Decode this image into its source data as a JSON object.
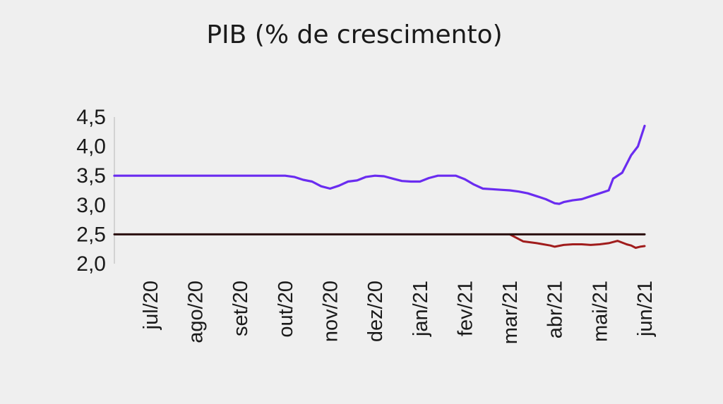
{
  "chart_data": {
    "type": "line",
    "title": "PIB (% de crescimento)",
    "xlabel": "",
    "ylabel": "",
    "ylim": [
      2.0,
      4.5
    ],
    "y_ticks": [
      "4,5",
      "4,0",
      "3,5",
      "3,0",
      "2,5",
      "2,0"
    ],
    "y_tick_values": [
      4.5,
      4.0,
      3.5,
      3.0,
      2.5,
      2.0
    ],
    "categories": [
      "jul/20",
      "ago/20",
      "set/20",
      "out/20",
      "nov/20",
      "dez/20",
      "jan/21",
      "fev/21",
      "mar/21",
      "abr/21",
      "mai/21",
      "jun/21"
    ],
    "x_range": [
      -0.8,
      11.0
    ],
    "grid": false,
    "legend": "none",
    "colors": {
      "blue_series": "#6a2cf0",
      "red_series": "#a01c1c",
      "reference_line": "#2a0f0f",
      "axis": "#c8c8c8"
    },
    "series": [
      {
        "color": "#6a2cf0",
        "x": [
          -0.8,
          0,
          1,
          2,
          3,
          3.2,
          3.4,
          3.6,
          3.8,
          4.0,
          4.2,
          4.4,
          4.6,
          4.8,
          5.0,
          5.2,
          5.4,
          5.6,
          5.8,
          6.0,
          6.2,
          6.4,
          6.6,
          6.8,
          7.0,
          7.2,
          7.4,
          7.6,
          7.8,
          8.0,
          8.2,
          8.4,
          8.6,
          8.8,
          9.0,
          9.1,
          9.2,
          9.4,
          9.6,
          9.8,
          10.0,
          10.2,
          10.3,
          10.5,
          10.7,
          10.85,
          11.0
        ],
        "values": [
          3.5,
          3.5,
          3.5,
          3.5,
          3.5,
          3.48,
          3.43,
          3.4,
          3.32,
          3.28,
          3.33,
          3.4,
          3.42,
          3.48,
          3.5,
          3.49,
          3.45,
          3.41,
          3.4,
          3.4,
          3.46,
          3.5,
          3.5,
          3.5,
          3.44,
          3.35,
          3.28,
          3.27,
          3.26,
          3.25,
          3.23,
          3.2,
          3.15,
          3.1,
          3.03,
          3.02,
          3.05,
          3.08,
          3.1,
          3.15,
          3.2,
          3.25,
          3.45,
          3.55,
          3.85,
          4.0,
          4.35
        ]
      },
      {
        "color": "#a01c1c",
        "x": [
          8.0,
          8.3,
          8.6,
          8.9,
          9.0,
          9.2,
          9.4,
          9.6,
          9.8,
          10.0,
          10.2,
          10.4,
          10.6,
          10.7,
          10.8,
          10.9,
          11.0
        ],
        "values": [
          2.5,
          2.38,
          2.35,
          2.31,
          2.29,
          2.32,
          2.33,
          2.33,
          2.32,
          2.33,
          2.35,
          2.39,
          2.33,
          2.31,
          2.27,
          2.29,
          2.3
        ]
      },
      {
        "color": "#2a0f0f",
        "x": [
          -0.8,
          11.0
        ],
        "values": [
          2.5,
          2.5
        ]
      }
    ]
  }
}
